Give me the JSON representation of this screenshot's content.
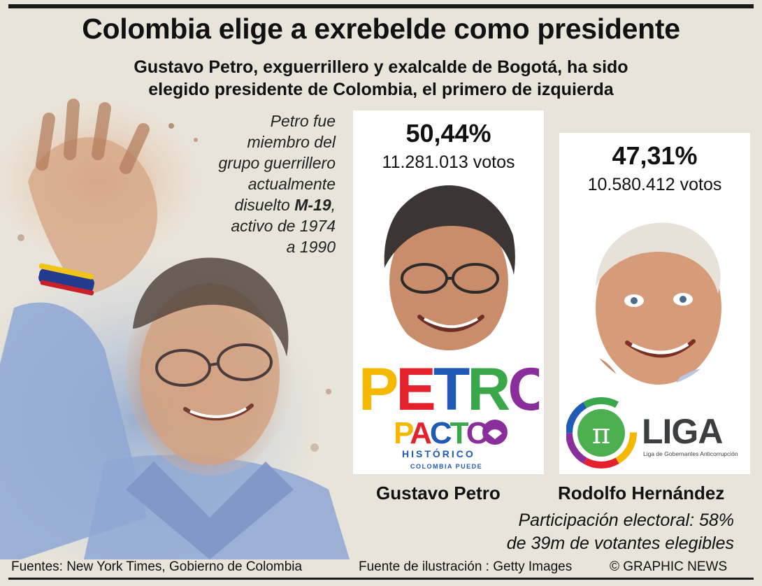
{
  "title": "Colombia elige a exrebelde como presidente",
  "subtitle_line1": "Gustavo Petro, exguerrillero y exalcalde de Bogotá, ha sido",
  "subtitle_line2": "elegido presidente de Colombia, el primero de izquierda",
  "side_note": {
    "l1": "Petro fue",
    "l2": "miembro del",
    "l3": "grupo guerrillero",
    "l4": "actualmente",
    "l5_pre": "disuelto ",
    "l5_bold": "M-19",
    "l5_post": ",",
    "l6": "activo de 1974",
    "l7": "a 1990"
  },
  "candidates": [
    {
      "name": "Gustavo Petro",
      "percent": "50,44%",
      "votes": "11.281.013 votos"
    },
    {
      "name": "Rodolfo Hernández",
      "percent": "47,31%",
      "votes": "10.580.412 votos"
    }
  ],
  "logos": {
    "petro_word": "PETRO",
    "pacto": "PACTO",
    "historico": "HISTÓRICO",
    "colombia_puede": "COLOMBIA PUEDE",
    "liga": "LIGA",
    "liga_sub": "Liga de Gobernantes Anticorrupción",
    "pi": "π"
  },
  "turnout_line1": "Participación electoral: 58%",
  "turnout_line2": "de 39m de votantes elegibles",
  "footer": {
    "sources": "Fuentes: New York Times, Gobierno de Colombia",
    "illustration": "Fuente de ilustración : Getty Images",
    "credit": "© GRAPHIC NEWS"
  },
  "colors": {
    "background": "#e9e4d9",
    "petro_yellow": "#f5b800",
    "petro_red": "#e3222b",
    "petro_blue": "#1f5bb5",
    "petro_green": "#3aa84a",
    "petro_purple": "#8a2e9b",
    "liga_gray": "#3b3f42"
  }
}
